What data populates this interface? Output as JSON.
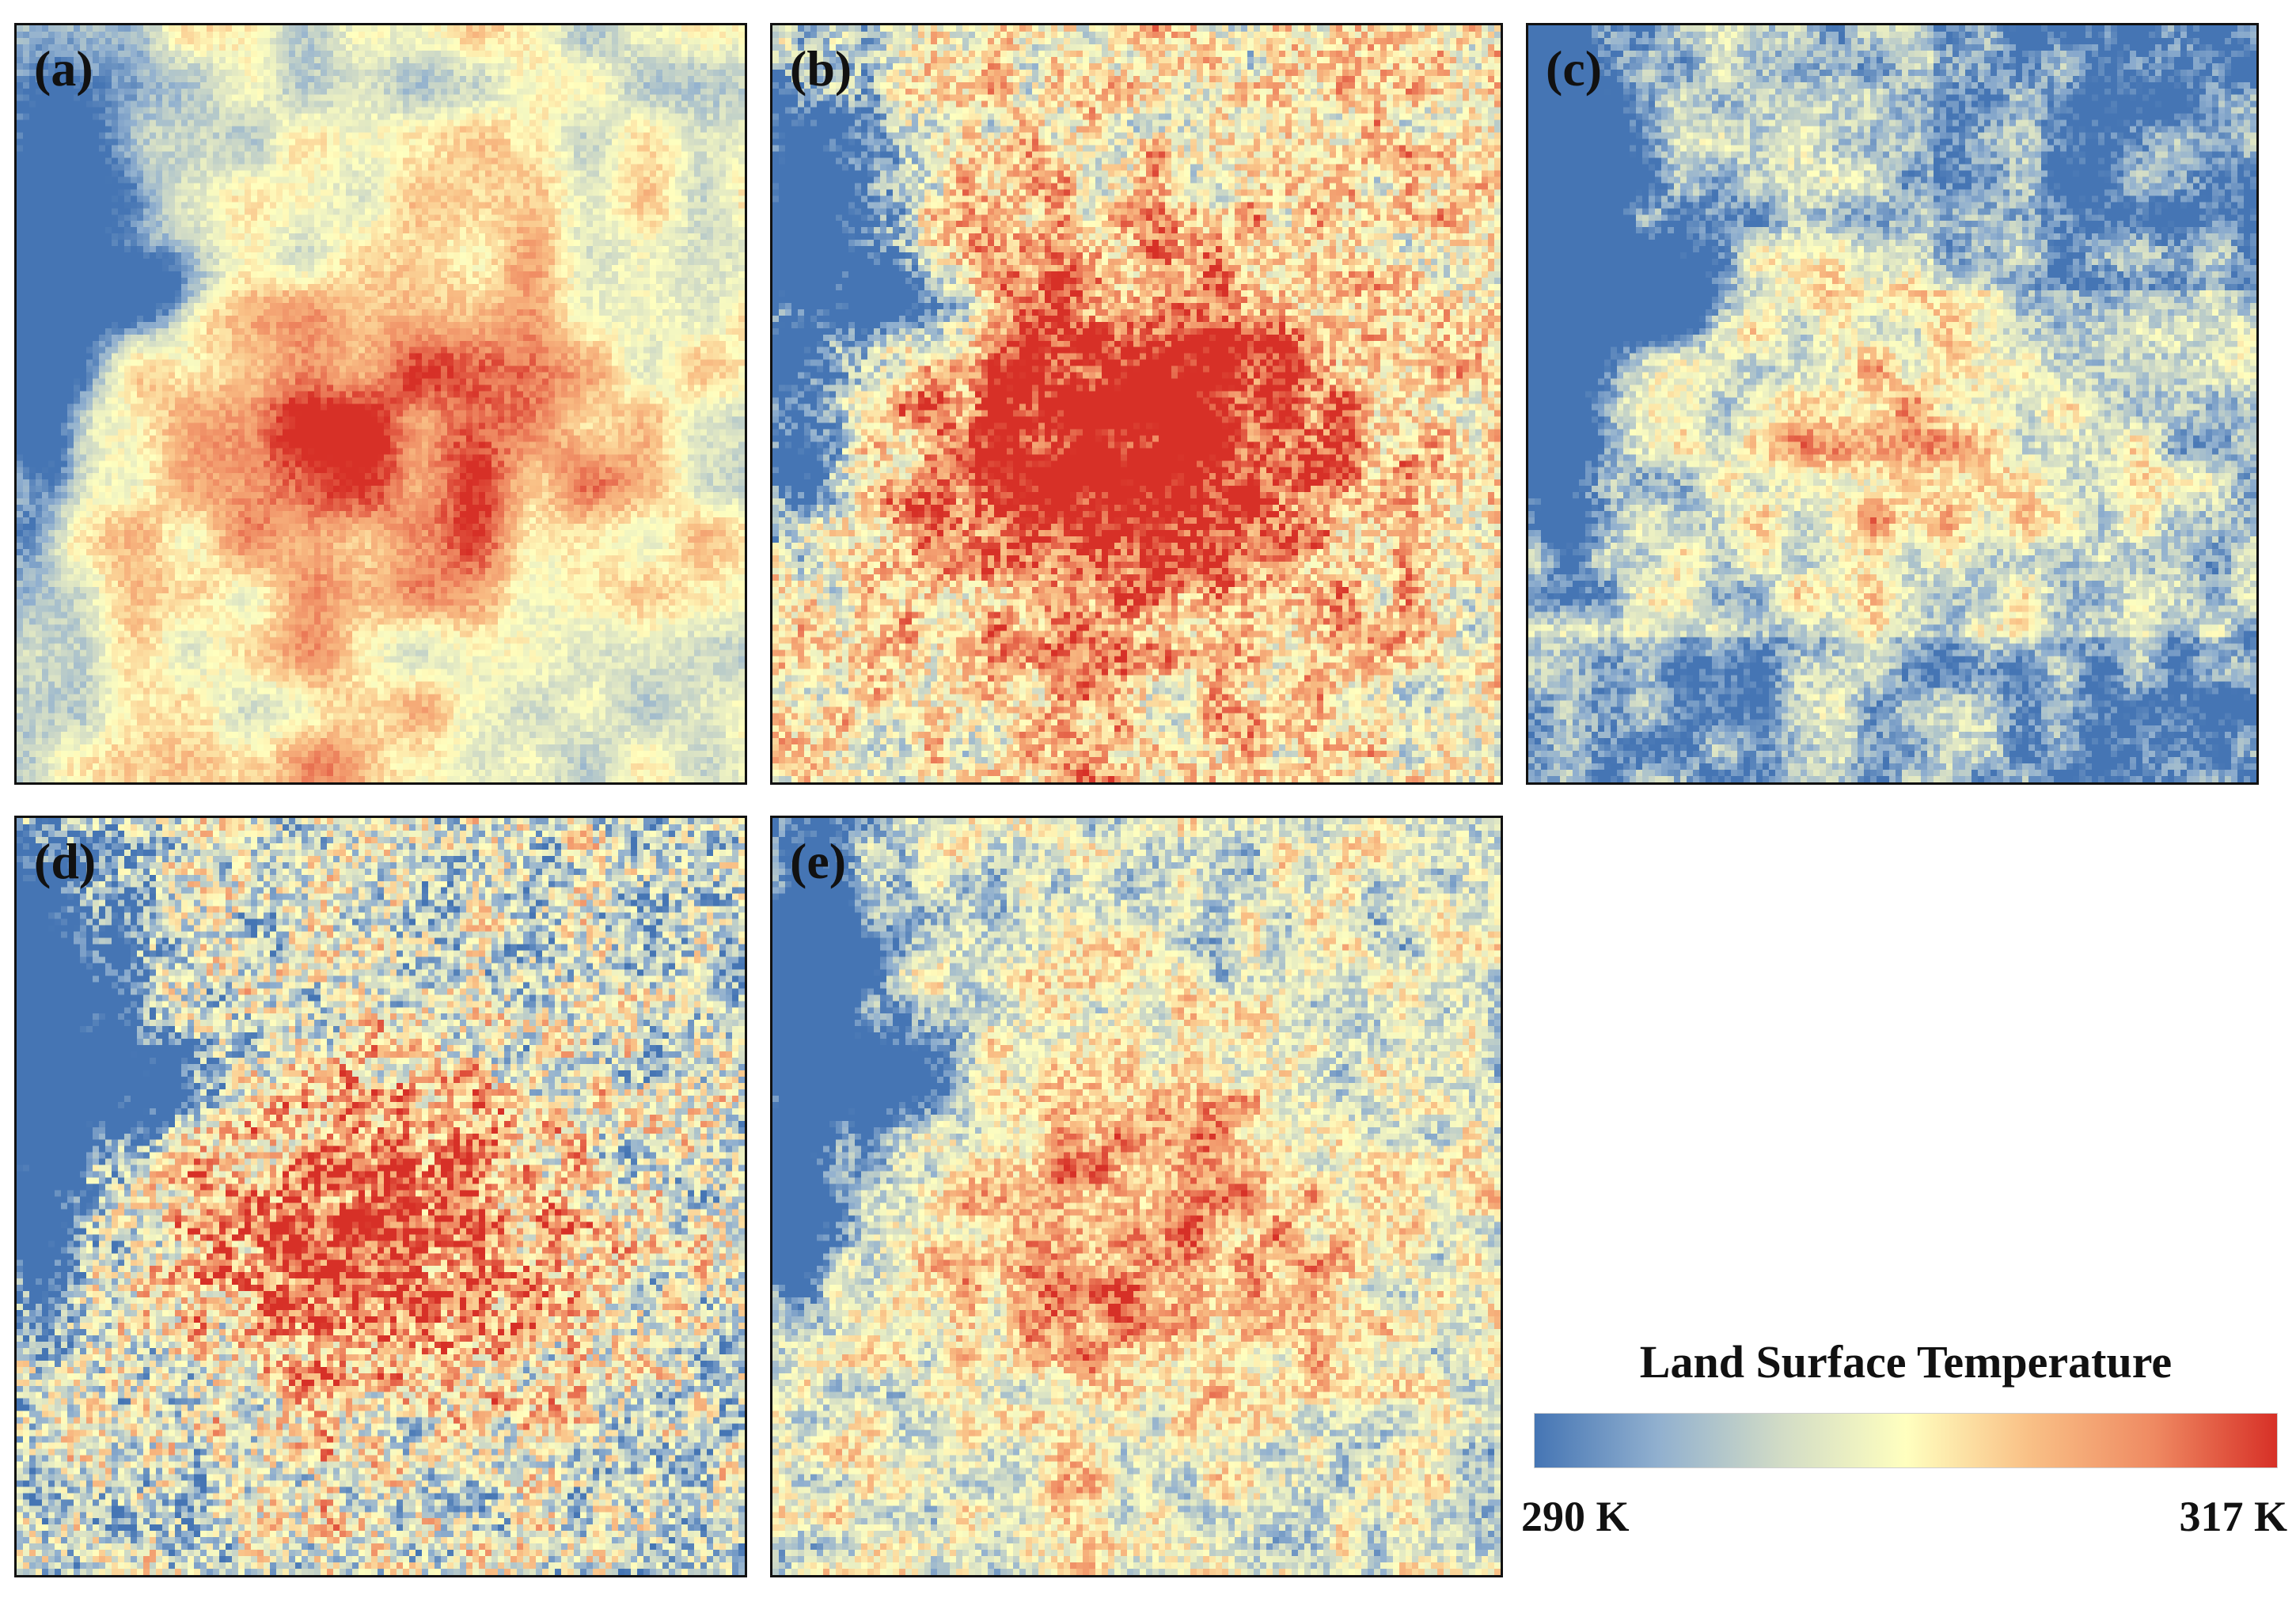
{
  "panels": [
    {
      "id": "a",
      "label": "(a)"
    },
    {
      "id": "b",
      "label": "(b)"
    },
    {
      "id": "c",
      "label": "(c)"
    },
    {
      "id": "d",
      "label": "(d)"
    },
    {
      "id": "e",
      "label": "(e)"
    }
  ],
  "legend": {
    "title": "Land Surface Temperature",
    "min_label": "290 K",
    "max_label": "317 K",
    "min_value": 290,
    "max_value": 317,
    "colors": [
      "#4575b4",
      "#91b0cf",
      "#d2dcc6",
      "#ffffbf",
      "#f9c086",
      "#ef8a62",
      "#d73027"
    ]
  }
}
